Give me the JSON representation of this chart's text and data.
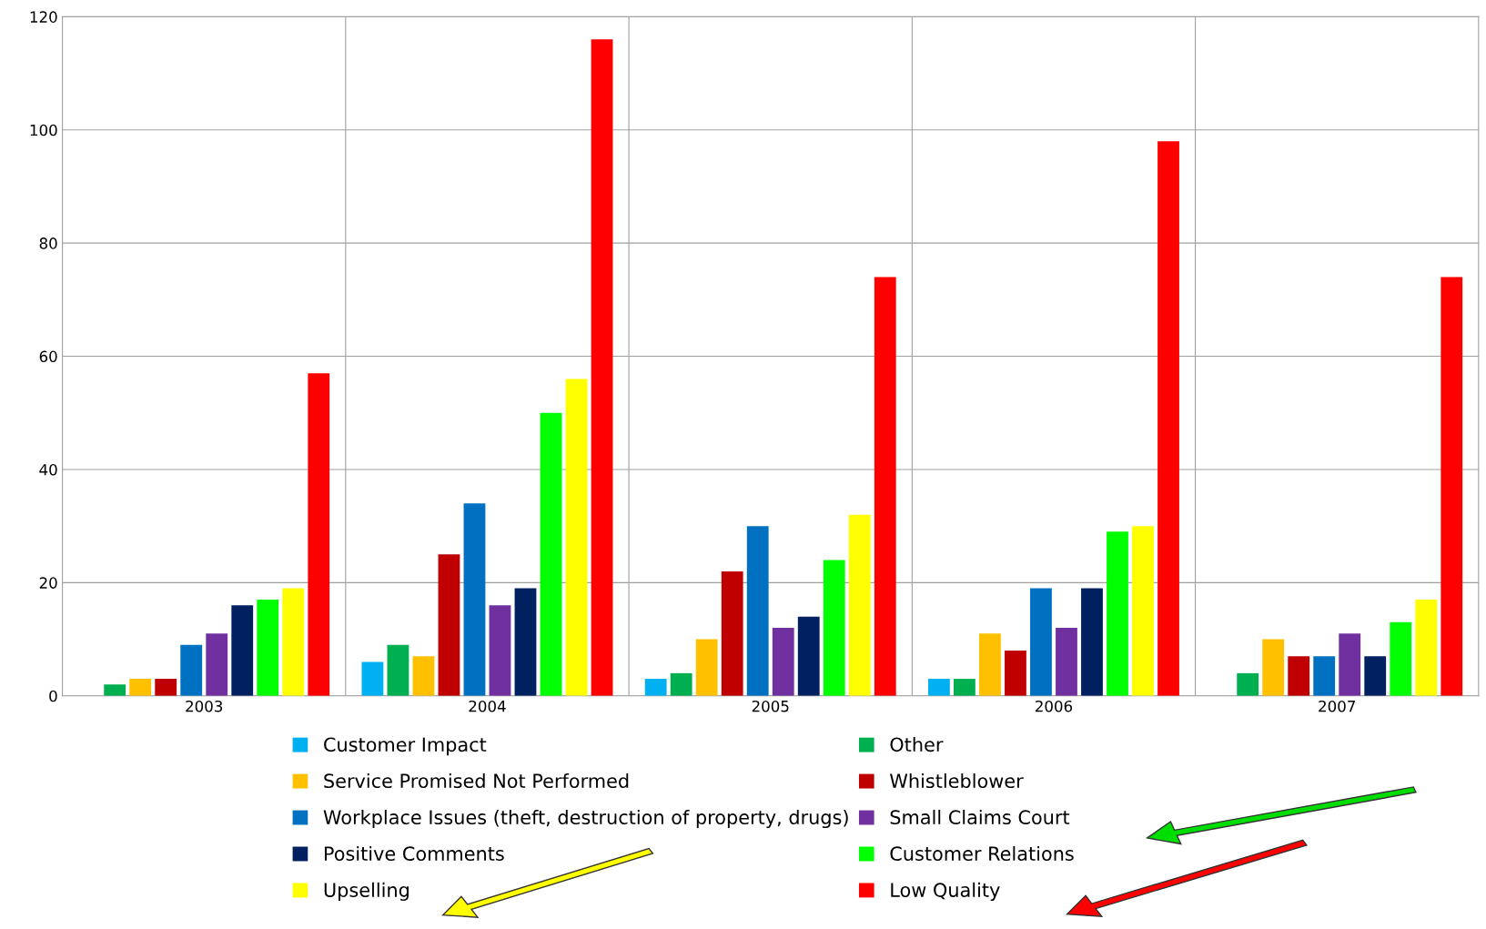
{
  "chart_data": {
    "type": "bar",
    "categories": [
      "2003",
      "2004",
      "2005",
      "2006",
      "2007"
    ],
    "series": [
      {
        "name": "Customer Impact",
        "color": "#00b0f0",
        "values": [
          0,
          6,
          3,
          3,
          0
        ]
      },
      {
        "name": "Other",
        "color": "#00b050",
        "values": [
          2,
          9,
          4,
          3,
          4
        ]
      },
      {
        "name": "Service Promised Not Performed",
        "color": "#ffc000",
        "values": [
          3,
          7,
          10,
          11,
          10
        ]
      },
      {
        "name": "Whistleblower",
        "color": "#c00000",
        "values": [
          3,
          25,
          22,
          8,
          7
        ]
      },
      {
        "name": "Workplace Issues (theft, destruction of property, drugs)",
        "color": "#0070c0",
        "values": [
          9,
          34,
          30,
          19,
          7
        ]
      },
      {
        "name": "Small Claims Court",
        "color": "#7030a0",
        "values": [
          11,
          16,
          12,
          12,
          11
        ]
      },
      {
        "name": "Positive Comments",
        "color": "#002060",
        "values": [
          16,
          19,
          14,
          19,
          7
        ]
      },
      {
        "name": "Customer Relations",
        "color": "#00ff00",
        "values": [
          17,
          50,
          24,
          29,
          13
        ]
      },
      {
        "name": "Upselling",
        "color": "#ffff00",
        "values": [
          19,
          56,
          32,
          30,
          17
        ]
      },
      {
        "name": "Low Quality",
        "color": "#ff0000",
        "values": [
          57,
          116,
          74,
          98,
          74
        ]
      }
    ],
    "ylim": [
      0,
      120
    ],
    "yticks": [
      0,
      20,
      40,
      60,
      80,
      100,
      120
    ],
    "grid": true,
    "legend": "bottom"
  }
}
